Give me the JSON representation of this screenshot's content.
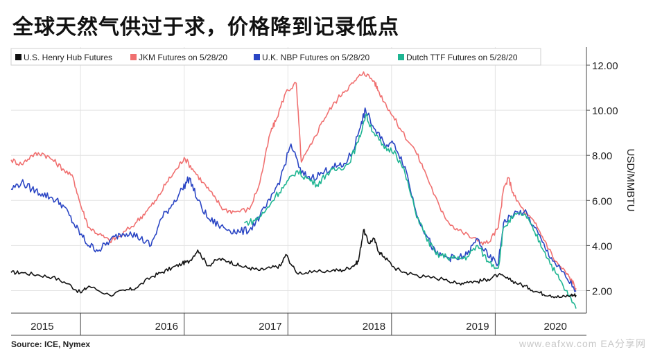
{
  "title": "全球天然气供过于求，价格降到记录低点",
  "source": "Source: ICE, Nymex",
  "watermark": "www.eafxw.com  EA分享网",
  "chart_data": {
    "type": "line",
    "title": "全球天然气供过于求，价格降到记录低点",
    "ylabel": "USD/MMBTU",
    "ylim": [
      1.0,
      12.8
    ],
    "yticks": [
      2,
      4,
      6,
      8,
      10,
      12
    ],
    "ytick_labels": [
      "2.00",
      "4.00",
      "6.00",
      "8.00",
      "10.00",
      "12.00"
    ],
    "xlim": [
      2015.0,
      2020.55
    ],
    "year_labels": [
      "2015",
      "2016",
      "2017",
      "2018",
      "2019",
      "2020"
    ],
    "year_label_x": [
      2015.3,
      2016.5,
      2017.5,
      2018.5,
      2019.5,
      2020.25
    ],
    "year_dividers": [
      2015.67,
      2016.67,
      2017.67,
      2018.67,
      2019.67
    ],
    "grid": true,
    "legend_position": "top-left",
    "series": [
      {
        "name": "U.S. Henry Hub Futures",
        "color": "#111111",
        "x": [
          2015.0,
          2015.1,
          2015.25,
          2015.4,
          2015.55,
          2015.67,
          2015.75,
          2015.95,
          2016.1,
          2016.2,
          2016.35,
          2016.45,
          2016.55,
          2016.65,
          2016.72,
          2016.8,
          2016.9,
          2017.0,
          2017.1,
          2017.2,
          2017.3,
          2017.4,
          2017.5,
          2017.6,
          2017.65,
          2017.75,
          2017.9,
          2018.1,
          2018.2,
          2018.3,
          2018.35,
          2018.4,
          2018.45,
          2018.5,
          2018.55,
          2018.6,
          2018.7,
          2018.8,
          2018.9,
          2019.0,
          2019.2,
          2019.3,
          2019.4,
          2019.5,
          2019.6,
          2019.7,
          2019.8,
          2019.9,
          2020.0,
          2020.1,
          2020.2,
          2020.3,
          2020.4,
          2020.45
        ],
        "y": [
          2.8,
          2.8,
          2.7,
          2.6,
          2.3,
          1.9,
          2.2,
          1.8,
          2.0,
          2.1,
          2.6,
          2.8,
          3.0,
          3.2,
          3.3,
          3.8,
          3.1,
          3.4,
          3.3,
          3.1,
          3.0,
          2.9,
          3.0,
          3.1,
          3.6,
          2.8,
          2.8,
          2.9,
          2.9,
          3.1,
          3.3,
          4.7,
          4.1,
          4.3,
          3.7,
          3.5,
          3.0,
          2.8,
          2.7,
          2.6,
          2.5,
          2.3,
          2.4,
          2.4,
          2.5,
          2.7,
          2.5,
          2.3,
          2.1,
          1.9,
          1.8,
          1.7,
          1.8,
          1.8
        ]
      },
      {
        "name": "JKM Futures on 5/28/20",
        "color": "#f07070",
        "x": [
          2015.0,
          2015.1,
          2015.2,
          2015.3,
          2015.4,
          2015.5,
          2015.6,
          2015.67,
          2015.75,
          2015.85,
          2015.95,
          2016.05,
          2016.2,
          2016.3,
          2016.4,
          2016.5,
          2016.6,
          2016.67,
          2016.75,
          2016.85,
          2016.95,
          2017.05,
          2017.15,
          2017.3,
          2017.4,
          2017.5,
          2017.55,
          2017.65,
          2017.75,
          2017.8,
          2017.9,
          2018.0,
          2018.1,
          2018.2,
          2018.3,
          2018.4,
          2018.5,
          2018.55,
          2018.65,
          2018.75,
          2018.9,
          2019.0,
          2019.15,
          2019.25,
          2019.35,
          2019.5,
          2019.6,
          2019.7,
          2019.75,
          2019.8,
          2019.85,
          2019.95,
          2020.05,
          2020.15,
          2020.25,
          2020.35,
          2020.4,
          2020.45
        ],
        "y": [
          7.8,
          7.6,
          8.0,
          8.1,
          7.8,
          7.4,
          7.0,
          5.8,
          4.8,
          4.5,
          4.2,
          4.4,
          5.0,
          5.5,
          6.0,
          6.8,
          7.4,
          7.9,
          7.4,
          6.8,
          6.2,
          5.6,
          5.5,
          5.6,
          6.8,
          9.0,
          9.5,
          10.8,
          11.2,
          7.7,
          8.5,
          9.5,
          10.2,
          10.8,
          11.2,
          11.7,
          11.3,
          10.8,
          10.0,
          9.2,
          8.2,
          7.2,
          5.5,
          4.9,
          4.6,
          4.2,
          4.1,
          4.8,
          6.5,
          7.0,
          6.2,
          5.5,
          5.0,
          4.2,
          3.3,
          2.8,
          2.5,
          2.1
        ]
      },
      {
        "name": "U.K. NBP Futures on 5/28/20",
        "color": "#2a45c4",
        "x": [
          2015.0,
          2015.1,
          2015.2,
          2015.3,
          2015.4,
          2015.5,
          2015.6,
          2015.67,
          2015.75,
          2015.85,
          2015.95,
          2016.05,
          2016.15,
          2016.25,
          2016.35,
          2016.45,
          2016.55,
          2016.65,
          2016.72,
          2016.8,
          2016.9,
          2017.0,
          2017.1,
          2017.2,
          2017.3,
          2017.4,
          2017.5,
          2017.6,
          2017.7,
          2017.8,
          2017.9,
          2018.0,
          2018.1,
          2018.2,
          2018.3,
          2018.38,
          2018.42,
          2018.5,
          2018.6,
          2018.7,
          2018.8,
          2018.9,
          2019.0,
          2019.1,
          2019.2,
          2019.3,
          2019.4,
          2019.5,
          2019.6,
          2019.7,
          2019.75,
          2019.85,
          2019.95,
          2020.05,
          2020.15,
          2020.25,
          2020.35,
          2020.45
        ],
        "y": [
          6.5,
          6.8,
          6.5,
          6.3,
          6.1,
          5.8,
          5.0,
          4.5,
          4.0,
          3.8,
          4.2,
          4.5,
          4.6,
          4.3,
          4.0,
          5.2,
          5.8,
          6.5,
          7.0,
          6.0,
          5.2,
          4.9,
          4.7,
          4.6,
          4.7,
          5.3,
          6.0,
          7.0,
          8.5,
          7.2,
          7.0,
          7.2,
          7.5,
          7.5,
          8.2,
          9.5,
          10.0,
          9.2,
          8.5,
          8.5,
          7.5,
          5.6,
          4.5,
          3.6,
          3.5,
          3.4,
          3.6,
          4.3,
          3.5,
          3.2,
          5.0,
          5.4,
          5.5,
          4.8,
          3.9,
          3.2,
          2.6,
          2.0
        ]
      },
      {
        "name": "Dutch TTF Futures on 5/28/20",
        "color": "#1fb592",
        "x": [
          2017.25,
          2017.35,
          2017.45,
          2017.55,
          2017.65,
          2017.75,
          2017.85,
          2017.95,
          2018.05,
          2018.15,
          2018.25,
          2018.35,
          2018.42,
          2018.5,
          2018.6,
          2018.7,
          2018.8,
          2018.9,
          2019.0,
          2019.1,
          2019.2,
          2019.3,
          2019.4,
          2019.5,
          2019.6,
          2019.7,
          2019.75,
          2019.85,
          2019.95,
          2020.05,
          2020.15,
          2020.25,
          2020.35,
          2020.45
        ],
        "y": [
          5.0,
          5.1,
          5.5,
          6.2,
          6.7,
          7.3,
          7.0,
          6.7,
          7.2,
          7.4,
          7.6,
          8.6,
          9.8,
          9.0,
          8.3,
          8.2,
          7.2,
          5.5,
          4.4,
          3.6,
          3.5,
          3.4,
          3.5,
          4.0,
          3.3,
          3.0,
          4.8,
          5.3,
          5.4,
          4.6,
          3.7,
          2.8,
          2.0,
          1.2
        ]
      }
    ]
  }
}
